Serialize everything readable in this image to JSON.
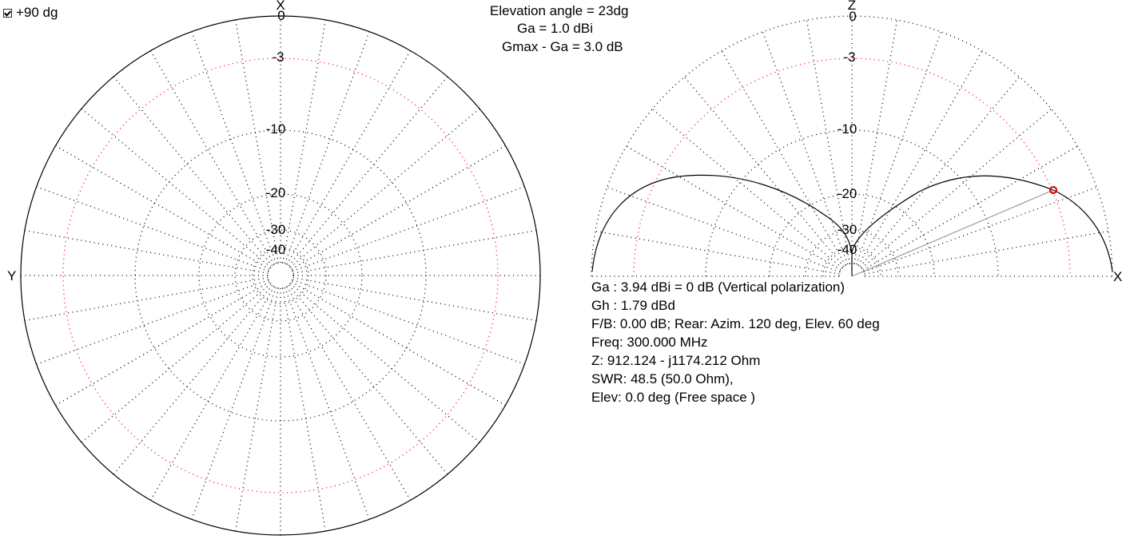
{
  "checkbox": {
    "label": "+90 dg",
    "checked": true
  },
  "header": {
    "elevation_angle": "Elevation angle =  23dg",
    "ga": "Ga = 1.0 dBi",
    "gmax_ga": "Gmax - Ga = 3.0 dB"
  },
  "azimuth_plot": {
    "axis_top": "X",
    "axis_left": "Y",
    "scale_labels": [
      "0",
      "-3",
      "-10",
      "-20",
      "-30",
      "-40"
    ]
  },
  "elevation_plot": {
    "axis_top": "Z",
    "axis_right": "X",
    "scale_labels": [
      "0",
      "-3",
      "-10",
      "-20",
      "-30",
      "-40"
    ]
  },
  "info": {
    "lines": [
      "Ga : 3.94 dBi = 0 dB  (Vertical polarization)",
      "Gh : 1.79 dBd",
      "F/B: 0.00 dB; Rear: Azim. 120 deg,  Elev. 60 deg",
      "Freq: 300.000 MHz",
      "Z: 912.124 - j1174.212 Ohm",
      "SWR: 48.5 (50.0 Ohm),",
      "Elev: 0.0 deg (Free space )"
    ]
  },
  "colors": {
    "trace": "#000000",
    "grid": "#000000",
    "minus3_ring": "#ff0000",
    "marker": "#cc0000",
    "cursor_line": "#999999"
  }
}
